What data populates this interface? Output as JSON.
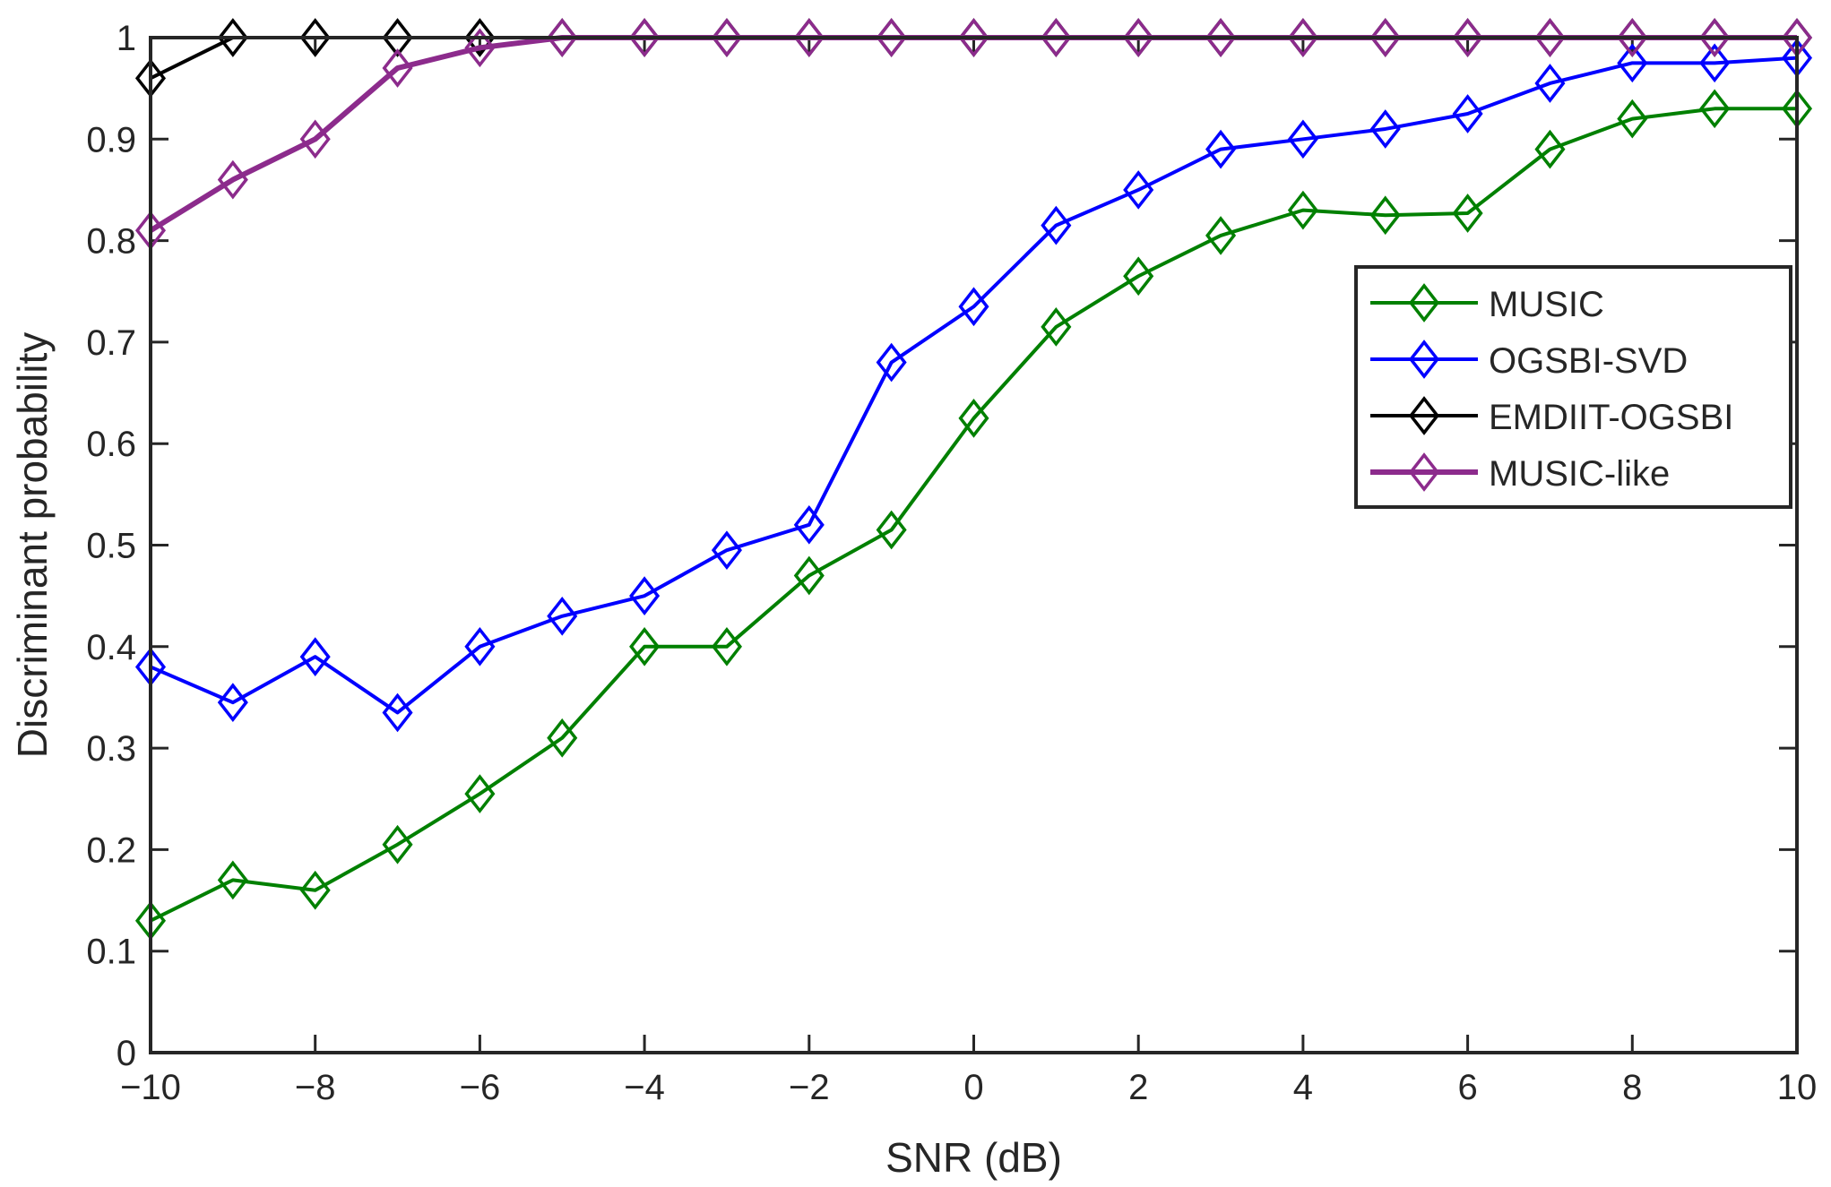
{
  "chart_data": {
    "type": "line",
    "title": "",
    "xlabel": "SNR (dB)",
    "ylabel": "Discriminant probability",
    "xlim": [
      -10,
      10
    ],
    "ylim": [
      0,
      1
    ],
    "grid": false,
    "legend_position": "upper-right",
    "x": [
      -10,
      -9,
      -8,
      -7,
      -6,
      -5,
      -4,
      -3,
      -2,
      -1,
      0,
      1,
      2,
      3,
      4,
      5,
      6,
      7,
      8,
      9,
      10
    ],
    "x_ticks": [
      -10,
      -8,
      -6,
      -4,
      -2,
      0,
      2,
      4,
      6,
      8,
      10
    ],
    "x_tick_labels": [
      "−10",
      "−8",
      "−6",
      "−4",
      "−2",
      "0",
      "2",
      "4",
      "6",
      "8",
      "10"
    ],
    "y_ticks": [
      0,
      0.1,
      0.2,
      0.3,
      0.4,
      0.5,
      0.6,
      0.7,
      0.8,
      0.9,
      1
    ],
    "y_tick_labels": [
      "0",
      "0.1",
      "0.2",
      "0.3",
      "0.4",
      "0.5",
      "0.6",
      "0.7",
      "0.8",
      "0.9",
      "1"
    ],
    "series": [
      {
        "name": "MUSIC",
        "color": "#008000",
        "marker": "diamond",
        "values": [
          0.13,
          0.17,
          0.16,
          0.205,
          0.255,
          0.31,
          0.4,
          0.4,
          0.47,
          0.515,
          0.625,
          0.715,
          0.765,
          0.805,
          0.83,
          0.825,
          0.827,
          0.89,
          0.92,
          0.93,
          0.93
        ]
      },
      {
        "name": "OGSBI-SVD",
        "color": "#0000ff",
        "marker": "diamond",
        "values": [
          0.38,
          0.345,
          0.39,
          0.335,
          0.4,
          0.43,
          0.45,
          0.495,
          0.52,
          0.68,
          0.735,
          0.815,
          0.85,
          0.89,
          0.9,
          0.91,
          0.925,
          0.955,
          0.975,
          0.975,
          0.98
        ]
      },
      {
        "name": "EMDIIT-OGSBI",
        "color": "#000000",
        "marker": "diamond",
        "values": [
          0.96,
          1,
          1,
          1,
          1,
          1,
          1,
          1,
          1,
          1,
          1,
          1,
          1,
          1,
          1,
          1,
          1,
          1,
          1,
          1,
          1
        ]
      },
      {
        "name": "MUSIC-like",
        "color": "#8c2b8c",
        "marker": "diamond",
        "values": [
          0.81,
          0.86,
          0.9,
          0.97,
          0.99,
          1,
          1,
          1,
          1,
          1,
          1,
          1,
          1,
          1,
          1,
          1,
          1,
          1,
          1,
          1,
          1
        ]
      }
    ]
  }
}
